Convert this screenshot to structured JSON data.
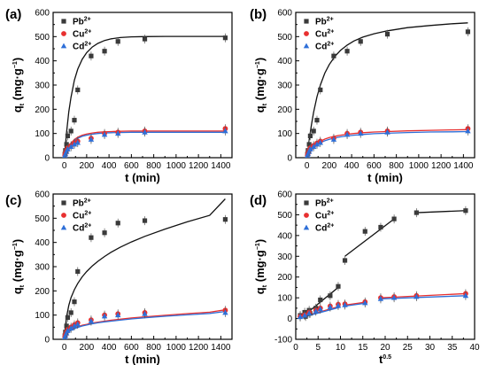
{
  "chart_data": [
    {
      "panel": "(a)",
      "type": "scatter",
      "xlabel": "t (min)",
      "ylabel": "q",
      "ylabel_sub": "t",
      "ylabel_unit": "(mg·g",
      "ylabel_unit_sup": "−1",
      "ylabel_unit_end": ")",
      "xlim": [
        -100,
        1500
      ],
      "ylim": [
        0,
        600
      ],
      "xticks": [
        0,
        200,
        400,
        600,
        800,
        1000,
        1200,
        1400
      ],
      "yticks": [
        0,
        100,
        200,
        300,
        400,
        500,
        600
      ],
      "legend_placement": "top-left",
      "series": [
        {
          "name": "Pb",
          "name_sup": "2+",
          "marker": "square",
          "color": "#3a3a3a",
          "x": [
            5,
            10,
            20,
            30,
            60,
            90,
            120,
            240,
            360,
            480,
            720,
            1440
          ],
          "y": [
            15,
            30,
            55,
            90,
            110,
            155,
            280,
            420,
            440,
            480,
            490,
            495
          ],
          "fit_x": [
            0,
            20,
            40,
            60,
            90,
            120,
            160,
            200,
            250,
            300,
            360,
            420,
            500,
            600,
            720,
            900,
            1100,
            1300,
            1440
          ],
          "fit_y": [
            0,
            105,
            190,
            250,
            320,
            366,
            406,
            434,
            457,
            472,
            484,
            491,
            496,
            499,
            500,
            501,
            501,
            501,
            501
          ]
        },
        {
          "name": "Cu",
          "name_sup": "2+",
          "marker": "circle",
          "color": "#e83030",
          "x": [
            5,
            10,
            20,
            30,
            60,
            90,
            120,
            240,
            360,
            480,
            720,
            1440
          ],
          "y": [
            10,
            18,
            30,
            40,
            50,
            60,
            68,
            80,
            100,
            105,
            110,
            120
          ],
          "fit_x": [
            0,
            20,
            40,
            60,
            90,
            120,
            160,
            200,
            250,
            300,
            360,
            420,
            500,
            600,
            720,
            900,
            1100,
            1300,
            1440
          ],
          "fit_y": [
            0,
            25,
            45,
            60,
            75,
            85,
            93,
            98,
            102,
            105,
            107,
            108,
            109,
            110,
            110,
            110,
            110,
            110,
            110
          ]
        },
        {
          "name": "Cd",
          "name_sup": "2+",
          "marker": "triangle",
          "color": "#2e6fd8",
          "x": [
            5,
            10,
            20,
            30,
            60,
            90,
            120,
            240,
            360,
            480,
            720,
            1440
          ],
          "y": [
            8,
            15,
            25,
            35,
            45,
            55,
            62,
            75,
            95,
            100,
            105,
            110
          ],
          "fit_x": [
            0,
            20,
            40,
            60,
            90,
            120,
            160,
            200,
            250,
            300,
            360,
            420,
            500,
            600,
            720,
            900,
            1100,
            1300,
            1440
          ],
          "fit_y": [
            0,
            23,
            42,
            56,
            70,
            80,
            88,
            93,
            97,
            100,
            102,
            103,
            104,
            105,
            105,
            105,
            105,
            105,
            105
          ]
        }
      ]
    },
    {
      "panel": "(b)",
      "type": "scatter",
      "xlabel": "t (min)",
      "ylabel": "q",
      "ylabel_sub": "t",
      "ylabel_unit": "(mg·g",
      "ylabel_unit_sup": "−1",
      "ylabel_unit_end": ")",
      "xlim": [
        -100,
        1500
      ],
      "ylim": [
        0,
        600
      ],
      "xticks": [
        0,
        200,
        400,
        600,
        800,
        1000,
        1200,
        1400
      ],
      "yticks": [
        0,
        100,
        200,
        300,
        400,
        500,
        600
      ],
      "legend_placement": "top-left",
      "series": [
        {
          "name": "Pb",
          "name_sup": "2+",
          "marker": "square",
          "color": "#3a3a3a",
          "x": [
            5,
            10,
            20,
            30,
            60,
            90,
            120,
            240,
            360,
            480,
            720,
            1440
          ],
          "y": [
            15,
            30,
            55,
            90,
            110,
            155,
            280,
            420,
            440,
            480,
            510,
            520
          ],
          "fit_x": [
            0,
            20,
            40,
            60,
            90,
            120,
            160,
            200,
            250,
            300,
            360,
            420,
            500,
            600,
            720,
            900,
            1100,
            1300,
            1440
          ],
          "fit_y": [
            0,
            72,
            135,
            188,
            252,
            300,
            349,
            385,
            418,
            443,
            465,
            482,
            498,
            512,
            524,
            537,
            546,
            553,
            557
          ]
        },
        {
          "name": "Cu",
          "name_sup": "2+",
          "marker": "circle",
          "color": "#e83030",
          "x": [
            5,
            10,
            20,
            30,
            60,
            90,
            120,
            240,
            360,
            480,
            720,
            1440
          ],
          "y": [
            10,
            18,
            30,
            40,
            50,
            60,
            68,
            80,
            100,
            105,
            110,
            120
          ],
          "fit_x": [
            0,
            20,
            40,
            60,
            90,
            120,
            160,
            200,
            250,
            300,
            360,
            420,
            500,
            600,
            720,
            900,
            1100,
            1300,
            1440
          ],
          "fit_y": [
            0,
            18,
            33,
            45,
            58,
            68,
            77,
            83,
            89,
            93,
            97,
            100,
            103,
            106,
            108,
            111,
            113,
            115,
            116
          ]
        },
        {
          "name": "Cd",
          "name_sup": "2+",
          "marker": "triangle",
          "color": "#2e6fd8",
          "x": [
            5,
            10,
            20,
            30,
            60,
            90,
            120,
            240,
            360,
            480,
            720,
            1440
          ],
          "y": [
            8,
            15,
            25,
            35,
            45,
            55,
            62,
            75,
            95,
            100,
            105,
            110
          ],
          "fit_x": [
            0,
            20,
            40,
            60,
            90,
            120,
            160,
            200,
            250,
            300,
            360,
            420,
            500,
            600,
            720,
            900,
            1100,
            1300,
            1440
          ],
          "fit_y": [
            0,
            16,
            30,
            41,
            53,
            62,
            70,
            76,
            82,
            86,
            90,
            93,
            96,
            99,
            101,
            104,
            106,
            107,
            108
          ]
        }
      ]
    },
    {
      "panel": "(c)",
      "type": "scatter",
      "xlabel": "t (min)",
      "ylabel": "q",
      "ylabel_sub": "t",
      "ylabel_unit": "(mg·g",
      "ylabel_unit_sup": "−1",
      "ylabel_unit_end": ")",
      "xlim": [
        -100,
        1500
      ],
      "ylim": [
        0,
        600
      ],
      "xticks": [
        0,
        200,
        400,
        600,
        800,
        1000,
        1200,
        1400
      ],
      "yticks": [
        0,
        100,
        200,
        300,
        400,
        500,
        600
      ],
      "legend_placement": "top-left",
      "series": [
        {
          "name": "Pb",
          "name_sup": "2+",
          "marker": "square",
          "color": "#3a3a3a",
          "x": [
            5,
            10,
            20,
            30,
            60,
            90,
            120,
            240,
            360,
            480,
            720,
            1440
          ],
          "y": [
            15,
            30,
            55,
            90,
            110,
            155,
            280,
            420,
            440,
            480,
            490,
            495
          ],
          "fit_x": [
            0,
            10,
            20,
            40,
            60,
            90,
            120,
            160,
            200,
            250,
            300,
            360,
            420,
            500,
            600,
            720,
            900,
            1100,
            1300,
            1440
          ],
          "fit_y": [
            0,
            55,
            93,
            140,
            172,
            205,
            231,
            258,
            280,
            303,
            322,
            342,
            360,
            380,
            402,
            425,
            455,
            485,
            512,
            580
          ]
        },
        {
          "name": "Cu",
          "name_sup": "2+",
          "marker": "circle",
          "color": "#e83030",
          "x": [
            5,
            10,
            20,
            30,
            60,
            90,
            120,
            240,
            360,
            480,
            720,
            1440
          ],
          "y": [
            10,
            18,
            30,
            40,
            50,
            60,
            68,
            80,
            100,
            105,
            110,
            120
          ],
          "fit_x": [
            0,
            10,
            20,
            40,
            60,
            90,
            120,
            160,
            200,
            250,
            300,
            360,
            420,
            500,
            600,
            720,
            900,
            1100,
            1300,
            1440
          ],
          "fit_y": [
            0,
            14,
            22,
            32,
            39,
            46,
            52,
            58,
            62,
            67,
            71,
            75,
            79,
            83,
            88,
            93,
            99,
            106,
            112,
            122
          ]
        },
        {
          "name": "Cd",
          "name_sup": "2+",
          "marker": "triangle",
          "color": "#2e6fd8",
          "x": [
            5,
            10,
            20,
            30,
            60,
            90,
            120,
            240,
            360,
            480,
            720,
            1440
          ],
          "y": [
            8,
            15,
            25,
            35,
            45,
            55,
            62,
            75,
            95,
            100,
            105,
            110
          ],
          "fit_x": [
            0,
            10,
            20,
            40,
            60,
            90,
            120,
            160,
            200,
            250,
            300,
            360,
            420,
            500,
            600,
            720,
            900,
            1100,
            1300,
            1440
          ],
          "fit_y": [
            0,
            13,
            21,
            30,
            37,
            44,
            49,
            55,
            59,
            64,
            68,
            72,
            75,
            79,
            84,
            89,
            95,
            101,
            107,
            115
          ]
        }
      ]
    },
    {
      "panel": "(d)",
      "type": "scatter",
      "xlabel": "t",
      "xlabel_sup": "0.5",
      "ylabel": "q",
      "ylabel_sub": "t",
      "ylabel_unit": "(mg·g",
      "ylabel_unit_sup": "−1",
      "ylabel_unit_end": ")",
      "xlim": [
        0,
        40
      ],
      "ylim": [
        -100,
        600
      ],
      "xticks": [
        0,
        5,
        10,
        15,
        20,
        25,
        30,
        35,
        40
      ],
      "yticks": [
        -100,
        0,
        100,
        200,
        300,
        400,
        500,
        600
      ],
      "legend_placement": "top-left",
      "series": [
        {
          "name": "Pb",
          "name_sup": "2+",
          "marker": "square",
          "color": "#3a3a3a",
          "x": [
            1,
            2,
            2.2,
            3,
            3.2,
            4.5,
            5.5,
            7.7,
            9.5,
            11,
            15.5,
            19,
            22,
            27,
            38
          ],
          "y": [
            15,
            30,
            10,
            40,
            25,
            50,
            90,
            110,
            155,
            280,
            420,
            440,
            480,
            510,
            520
          ],
          "fit_lines": [
            {
              "x": [
                1,
                9.5
              ],
              "y": [
                0,
                150
              ]
            },
            {
              "x": [
                11,
                22
              ],
              "y": [
                300,
                480
              ]
            },
            {
              "x": [
                27,
                38
              ],
              "y": [
                510,
                520
              ]
            }
          ]
        },
        {
          "name": "Cu",
          "name_sup": "2+",
          "marker": "circle",
          "color": "#e83030",
          "x": [
            1,
            2,
            3,
            4.5,
            5.5,
            7.7,
            9.5,
            11,
            15.5,
            19,
            22,
            27,
            38
          ],
          "y": [
            10,
            18,
            30,
            40,
            50,
            60,
            68,
            70,
            80,
            100,
            105,
            110,
            120
          ],
          "fit_lines": [
            {
              "x": [
                1,
                10
              ],
              "y": [
                5,
                60
              ]
            },
            {
              "x": [
                11,
                16
              ],
              "y": [
                65,
                80
              ]
            },
            {
              "x": [
                19,
                38
              ],
              "y": [
                100,
                120
              ]
            }
          ]
        },
        {
          "name": "Cd",
          "name_sup": "2+",
          "marker": "triangle",
          "color": "#2e6fd8",
          "x": [
            1,
            2,
            3,
            4.5,
            5.5,
            7.7,
            9.5,
            11,
            15.5,
            19,
            22,
            27,
            38
          ],
          "y": [
            8,
            15,
            25,
            35,
            45,
            55,
            62,
            65,
            75,
            95,
            100,
            105,
            110
          ],
          "fit_lines": [
            {
              "x": [
                1,
                10
              ],
              "y": [
                3,
                55
              ]
            },
            {
              "x": [
                11,
                16
              ],
              "y": [
                60,
                75
              ]
            },
            {
              "x": [
                19,
                38
              ],
              "y": [
                95,
                110
              ]
            }
          ]
        }
      ]
    }
  ]
}
